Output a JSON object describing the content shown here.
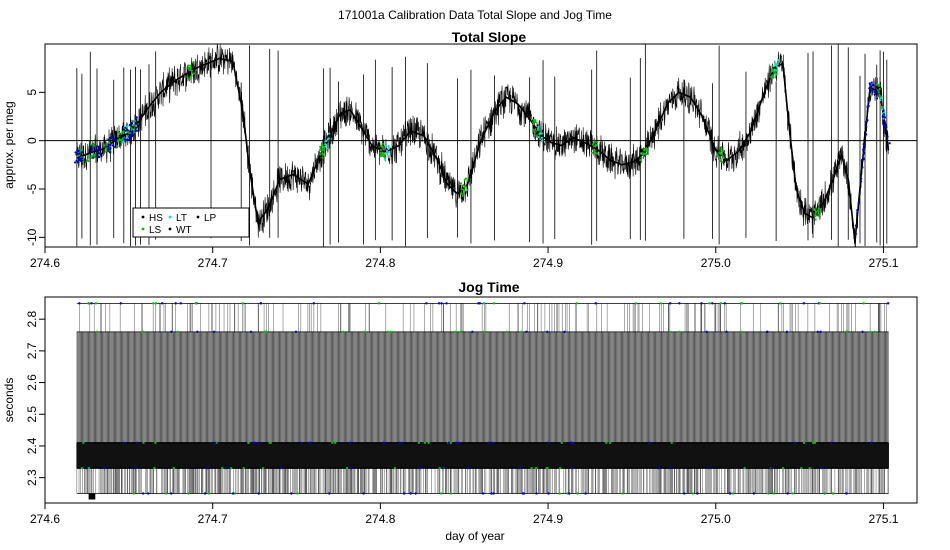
{
  "figure_title": "171001a   Calibration Data Total Slope and Jog Time",
  "colors": {
    "trace": "#000000",
    "HS": "#000000",
    "LS": "#00c000",
    "LT": "#00e5e5",
    "WT": "#000000",
    "LP": "#000000",
    "blue": "#0000cc"
  },
  "chart_data": [
    {
      "type": "line",
      "title": "Total Slope",
      "xlabel": "",
      "ylabel": "approx. per meg",
      "xlim": [
        274.6,
        275.12
      ],
      "ylim": [
        -11,
        10
      ],
      "x_ticks": [
        "274.6",
        "274.7",
        "274.8",
        "274.9",
        "275.0",
        "275.1"
      ],
      "y_ticks": [
        "-10",
        "-5",
        "0",
        "5"
      ],
      "reference_line_y": 0,
      "legend": {
        "position": "bottom-left",
        "entries": [
          "HS",
          "LT",
          "LP",
          "LS",
          "WT"
        ]
      },
      "series": [
        {
          "name": "Total Slope",
          "x": [
            274.619,
            274.628,
            274.636,
            274.643,
            274.65,
            274.656,
            274.662,
            274.669,
            274.676,
            274.683,
            274.69,
            274.697,
            274.704,
            274.712,
            274.718,
            274.722,
            274.727,
            274.733,
            274.74,
            274.748,
            274.757,
            274.764,
            274.77,
            274.776,
            274.782,
            274.788,
            274.795,
            274.803,
            274.811,
            274.818,
            274.826,
            274.834,
            274.84,
            274.846,
            274.852,
            274.86,
            274.868,
            274.875,
            274.882,
            274.89,
            274.896,
            274.902,
            274.908,
            274.915,
            274.923,
            274.93,
            274.937,
            274.944,
            274.951,
            274.958,
            274.965,
            274.972,
            274.978,
            274.985,
            274.992,
            275.0,
            275.007,
            275.014,
            275.021,
            275.029,
            275.035,
            275.04,
            275.044,
            275.048,
            275.053,
            275.058,
            275.064,
            275.07,
            275.075,
            275.079,
            275.083,
            275.087,
            275.092,
            275.098,
            275.103
          ],
          "y": [
            -1.8,
            -1.2,
            -0.8,
            0.2,
            0.8,
            2.0,
            3.5,
            5.0,
            6.0,
            6.8,
            7.5,
            8.0,
            8.5,
            8.2,
            3.0,
            -3.0,
            -8.5,
            -7.0,
            -4.0,
            -3.5,
            -4.5,
            -1.5,
            0.5,
            2.8,
            3.2,
            1.5,
            -0.5,
            -1.2,
            -0.5,
            1.0,
            0.5,
            -2.0,
            -4.5,
            -5.5,
            -4.5,
            0.0,
            3.0,
            4.5,
            3.8,
            2.0,
            0.5,
            -0.2,
            -0.5,
            0.3,
            -0.3,
            -1.0,
            -2.0,
            -2.5,
            -2.2,
            -1.2,
            1.5,
            4.0,
            5.0,
            4.5,
            2.5,
            -1.0,
            -2.0,
            -1.0,
            1.0,
            5.0,
            7.5,
            8.0,
            1.0,
            -5.0,
            -7.5,
            -8.0,
            -6.5,
            -4.0,
            -1.5,
            -4.0,
            -10.5,
            -3.0,
            5.5,
            5.0,
            -1.0
          ]
        }
      ]
    },
    {
      "type": "line",
      "title": "Jog Time",
      "xlabel": "day of year",
      "ylabel": "seconds",
      "xlim": [
        274.6,
        275.12
      ],
      "ylim": [
        2.22,
        2.87
      ],
      "x_ticks": [
        "274.6",
        "274.7",
        "274.8",
        "274.9",
        "275.0",
        "275.1"
      ],
      "y_ticks": [
        "2.3",
        "2.4",
        "2.5",
        "2.6",
        "2.7",
        "2.8"
      ],
      "series": [
        {
          "name": "Jog Time",
          "x_range": [
            274.619,
            275.103
          ],
          "levels": [
            2.25,
            2.33,
            2.41,
            2.76,
            2.85
          ]
        }
      ]
    }
  ]
}
